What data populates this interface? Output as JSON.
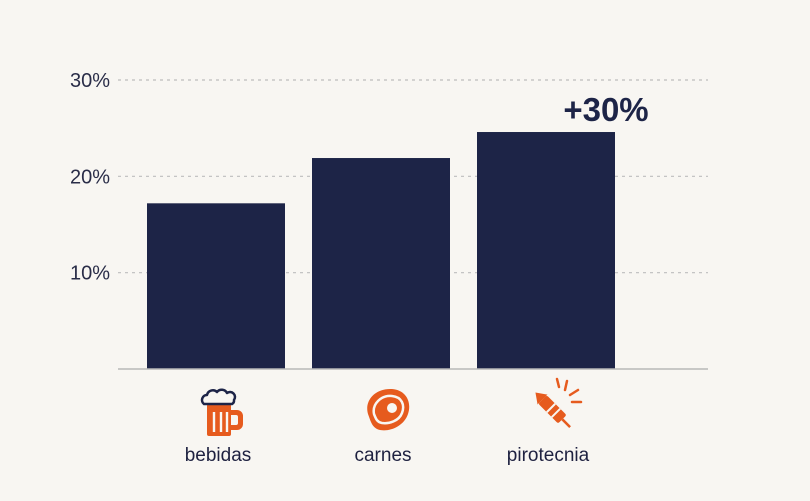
{
  "chart_data": {
    "type": "bar",
    "categories": [
      "bebidas",
      "carnes",
      "pirotecnia"
    ],
    "category_icons": [
      "beer-mug-icon",
      "steak-icon",
      "firework-rocket-icon"
    ],
    "values": [
      17.2,
      21.9,
      24.6
    ],
    "ylim": [
      0,
      30
    ],
    "yticks": [
      10,
      20,
      30
    ],
    "ytick_labels": [
      "10%",
      "20%",
      "30%"
    ],
    "annotation": "+30%",
    "title": "",
    "xlabel": "",
    "ylabel": "",
    "grid": true,
    "colors": {
      "bar": "#1d2447",
      "icon": "#e65b1e",
      "background": "#f8f6f2"
    }
  }
}
